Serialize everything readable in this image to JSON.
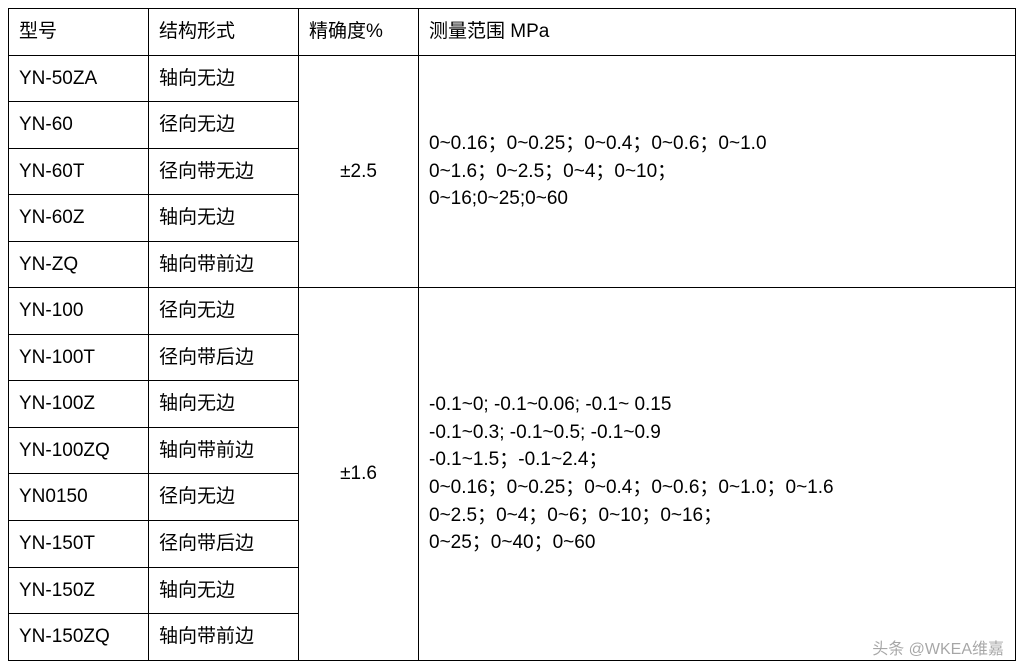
{
  "table": {
    "columns": {
      "model": "型号",
      "struct": "结构形式",
      "accuracy": "精确度%",
      "range": "测量范围 MPa"
    },
    "groups": [
      {
        "accuracy": "±2.5",
        "range_lines": [
          "0~0.16；0~0.25；0~0.4；0~0.6；0~1.0",
          "0~1.6；0~2.5；0~4；0~10；",
          "0~16;0~25;0~60"
        ],
        "rows": [
          {
            "model": "YN-50ZA",
            "struct": "轴向无边"
          },
          {
            "model": "YN-60",
            "struct": "径向无边"
          },
          {
            "model": "YN-60T",
            "struct": "径向带无边"
          },
          {
            "model": "YN-60Z",
            "struct": "轴向无边"
          },
          {
            "model": "YN-ZQ",
            "struct": "轴向带前边"
          }
        ]
      },
      {
        "accuracy": "±1.6",
        "range_lines": [
          "-0.1~0; -0.1~0.06; -0.1~ 0.15",
          "-0.1~0.3; -0.1~0.5; -0.1~0.9",
          "-0.1~1.5；-0.1~2.4；",
          "0~0.16；0~0.25；0~0.4；0~0.6；0~1.0；0~1.6",
          "0~2.5；0~4；0~6；0~10；0~16；",
          "0~25；0~40；0~60"
        ],
        "rows": [
          {
            "model": "YN-100",
            "struct": "径向无边"
          },
          {
            "model": "YN-100T",
            "struct": "径向带后边"
          },
          {
            "model": "YN-100Z",
            "struct": "轴向无边"
          },
          {
            "model": "YN-100ZQ",
            "struct": "轴向带前边"
          },
          {
            "model": "YN0150",
            "struct": "径向无边"
          },
          {
            "model": "YN-150T",
            "struct": "径向带后边"
          },
          {
            "model": "YN-150Z",
            "struct": "轴向无边"
          },
          {
            "model": "YN-150ZQ",
            "struct": "轴向带前边"
          }
        ]
      }
    ]
  },
  "watermark": "头条 @WKEA维嘉"
}
